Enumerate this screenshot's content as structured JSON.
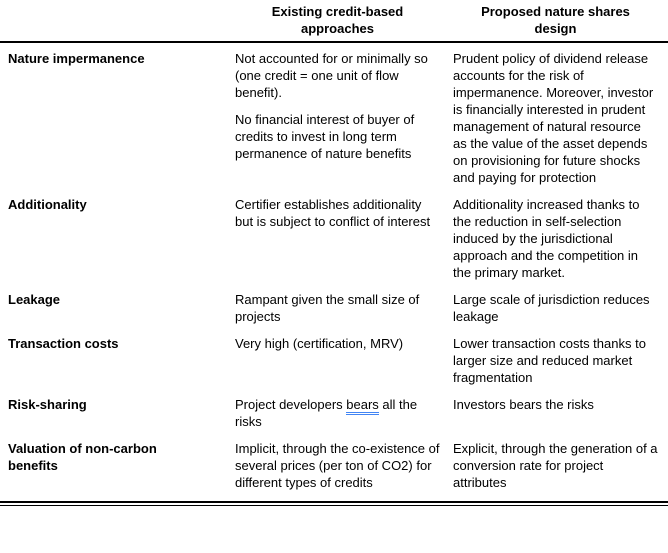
{
  "page": {
    "background_color": "#ffffff",
    "text_color": "#000000",
    "rule_color": "#000000",
    "grammar_underline_color": "#4285f4"
  },
  "header": {
    "col_existing": "Existing credit-based approaches",
    "col_proposed": "Proposed nature shares design"
  },
  "rows": [
    {
      "label": "Nature impermanence",
      "existing": [
        "Not accounted for or minimally so (one credit = one unit of flow benefit).",
        "No financial interest of buyer of credits to invest in long term permanence of nature benefits"
      ],
      "proposed": [
        "Prudent policy of dividend release accounts for the risk of impermanence. Moreover, investor is financially interested in prudent management of natural resource as the value of the asset depends on provisioning for future shocks and paying for protection"
      ]
    },
    {
      "label": "Additionality",
      "existing": [
        "Certifier establishes additionality but is subject to conflict of interest"
      ],
      "proposed": [
        "Additionality increased thanks to the reduction in self-selection induced by the jurisdictional approach and the competition in the primary market."
      ]
    },
    {
      "label": "Leakage",
      "existing": [
        "Rampant given the small size of projects"
      ],
      "proposed": [
        "Large scale of jurisdiction reduces leakage"
      ]
    },
    {
      "label": "Transaction costs",
      "existing": [
        "Very high (certification, MRV)"
      ],
      "proposed": [
        "Lower transaction costs thanks to larger size and reduced market fragmentation"
      ]
    },
    {
      "label": "Risk-sharing",
      "existing_parts": {
        "pre": "Project developers ",
        "marked": "bears",
        "post": " all the risks"
      },
      "proposed": [
        "Investors bears the risks"
      ]
    },
    {
      "label": "Valuation of non-carbon benefits",
      "existing": [
        "Implicit, through the co-existence of several prices (per ton of CO2) for different types of credits"
      ],
      "proposed": [
        "Explicit, through the generation of a conversion rate for project attributes"
      ]
    }
  ]
}
